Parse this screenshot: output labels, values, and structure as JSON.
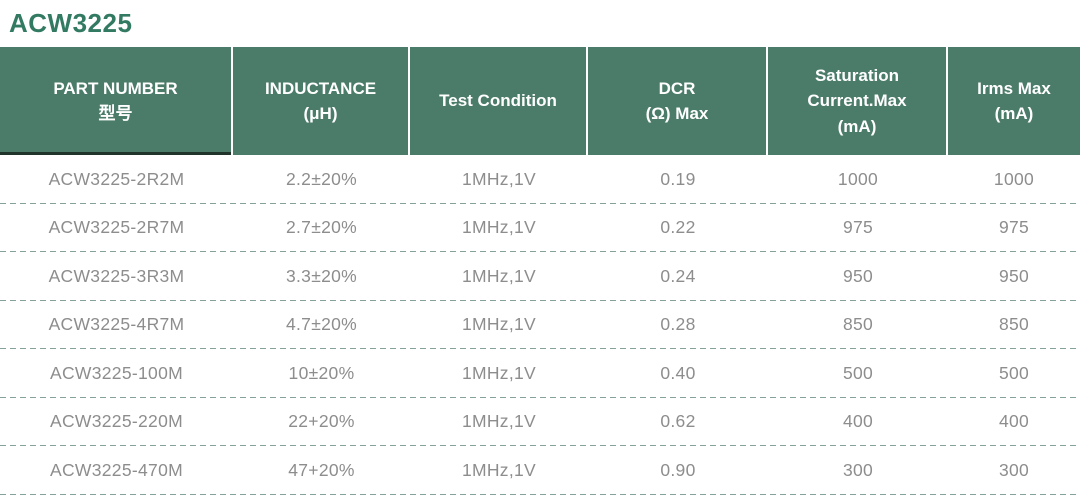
{
  "page": {
    "title": "ACW3225"
  },
  "colors": {
    "header_bg": "#4B7C6A",
    "title_green": "#337A62",
    "dashed_separator": "#84A29B",
    "data_text": "#8D8D8D",
    "header_text": "#FFFFFF",
    "first_column_underline": "#20342B"
  },
  "table": {
    "headers": [
      {
        "id": "part-number",
        "label": "PART NUMBER\n型号"
      },
      {
        "id": "inductance",
        "label": "INDUCTANCE\n(μH)"
      },
      {
        "id": "test-condition",
        "label": "Test Condition"
      },
      {
        "id": "dcr",
        "label": "DCR\n(Ω) Max"
      },
      {
        "id": "saturation-current",
        "label": "Saturation\nCurrent.Max\n(mA)"
      },
      {
        "id": "irms-max",
        "label": "Irms Max\n(mA)"
      }
    ],
    "rows": [
      [
        "ACW3225-2R2M",
        "2.2±20%",
        "1MHz,1V",
        "0.19",
        "1000",
        "1000"
      ],
      [
        "ACW3225-2R7M",
        "2.7±20%",
        "1MHz,1V",
        "0.22",
        "975",
        "975"
      ],
      [
        "ACW3225-3R3M",
        "3.3±20%",
        "1MHz,1V",
        "0.24",
        "950",
        "950"
      ],
      [
        "ACW3225-4R7M",
        "4.7±20%",
        "1MHz,1V",
        "0.28",
        "850",
        "850"
      ],
      [
        "ACW3225-100M",
        "10±20%",
        "1MHz,1V",
        "0.40",
        "500",
        "500"
      ],
      [
        "ACW3225-220M",
        "22+20%",
        "1MHz,1V",
        "0.62",
        "400",
        "400"
      ],
      [
        "ACW3225-470M",
        "47+20%",
        "1MHz,1V",
        "0.90",
        "300",
        "300"
      ]
    ]
  }
}
